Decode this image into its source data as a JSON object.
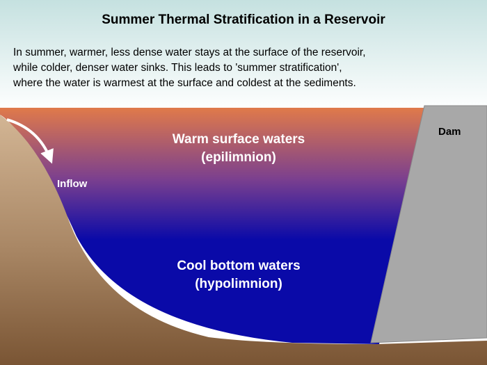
{
  "title": "Summer Thermal Stratification in a Reservoir",
  "description_lines": [
    "In summer, warmer, less dense water stays at the surface of the reservoir,",
    "while colder, denser water sinks. This leads to 'summer stratification',",
    "where the water is warmest at the surface and coldest at the sediments."
  ],
  "layers": {
    "epilimnion": {
      "line1": "Warm surface waters",
      "line2": "(epilimnion)"
    },
    "hypolimnion": {
      "line1": "Cool bottom waters",
      "line2": "(hypolimnion)"
    }
  },
  "labels": {
    "inflow": "Inflow",
    "dam": "Dam"
  },
  "colors": {
    "sky_top": "#c5e1e0",
    "sky_bottom": "#ffffff",
    "surface_water": "#e07a4a",
    "mid_water": "#7a3f8f",
    "deep_water": "#0a0aa8",
    "ground_light": "#d6b998",
    "ground_dark": "#7a5534",
    "dam": "#a8a8a8"
  }
}
